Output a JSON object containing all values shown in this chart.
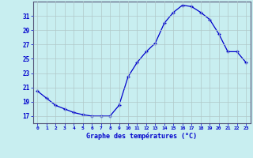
{
  "hours": [
    0,
    1,
    2,
    3,
    4,
    5,
    6,
    7,
    8,
    9,
    10,
    11,
    12,
    13,
    14,
    15,
    16,
    17,
    18,
    19,
    20,
    21,
    22,
    23
  ],
  "temperatures": [
    20.5,
    19.5,
    18.5,
    18.0,
    17.5,
    17.2,
    17.0,
    17.0,
    17.0,
    18.5,
    22.5,
    24.5,
    26.0,
    27.2,
    30.0,
    31.5,
    32.5,
    32.3,
    31.5,
    30.5,
    28.5,
    26.0,
    26.0,
    24.5
  ],
  "xlabel": "Graphe des températures (°C)",
  "ylim": [
    16,
    33
  ],
  "xlim": [
    -0.5,
    23.5
  ],
  "yticks": [
    17,
    19,
    21,
    23,
    25,
    27,
    29,
    31
  ],
  "xticks": [
    0,
    1,
    2,
    3,
    4,
    5,
    6,
    7,
    8,
    9,
    10,
    11,
    12,
    13,
    14,
    15,
    16,
    17,
    18,
    19,
    20,
    21,
    22,
    23
  ],
  "line_color": "#0000cc",
  "marker": "+",
  "bg_color": "#c8eef0",
  "grid_color": "#b0c8c8",
  "spine_color": "#555577"
}
